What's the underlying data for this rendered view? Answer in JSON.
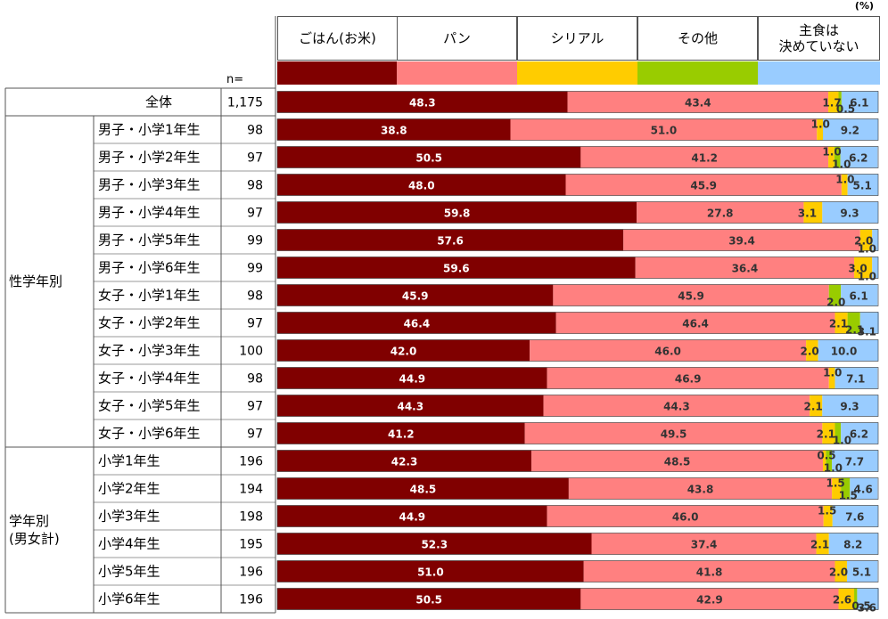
{
  "unit": "(%)",
  "n_header": "n=",
  "colors": [
    "#800000",
    "#ff8080",
    "#ffcc00",
    "#99cc00",
    "#99ccff"
  ],
  "chart_data": {
    "type": "bar",
    "orientation": "horizontal",
    "stacked": true,
    "xlim": [
      0,
      100
    ],
    "legend_position": "top",
    "series_names": [
      "ごはん(お米)",
      "パン",
      "シリアル",
      "その他",
      "主食は\n決めていない"
    ],
    "groups": [
      {
        "label": "",
        "rows": [
          0
        ]
      },
      {
        "label": "性学年別",
        "rows": [
          1,
          2,
          3,
          4,
          5,
          6,
          7,
          8,
          9,
          10,
          11,
          12
        ]
      },
      {
        "label": "学年別\n(男女計)",
        "rows": [
          13,
          14,
          15,
          16,
          17,
          18
        ]
      }
    ],
    "rows": [
      {
        "label": "全体",
        "n": "1,175",
        "values": [
          48.3,
          43.4,
          1.7,
          0.5,
          6.1
        ]
      },
      {
        "label": "男子・小学1年生",
        "n": "98",
        "values": [
          38.8,
          51.0,
          1.0,
          0,
          9.2
        ]
      },
      {
        "label": "男子・小学2年生",
        "n": "97",
        "values": [
          50.5,
          41.2,
          1.0,
          1.0,
          6.2
        ]
      },
      {
        "label": "男子・小学3年生",
        "n": "98",
        "values": [
          48.0,
          45.9,
          1.0,
          0,
          5.1
        ]
      },
      {
        "label": "男子・小学4年生",
        "n": "97",
        "values": [
          59.8,
          27.8,
          3.1,
          0,
          9.3
        ]
      },
      {
        "label": "男子・小学5年生",
        "n": "99",
        "values": [
          57.6,
          39.4,
          2.0,
          0,
          1.0
        ]
      },
      {
        "label": "男子・小学6年生",
        "n": "99",
        "values": [
          59.6,
          36.4,
          3.0,
          0,
          1.0
        ]
      },
      {
        "label": "女子・小学1年生",
        "n": "98",
        "values": [
          45.9,
          45.9,
          0,
          2.0,
          6.1
        ]
      },
      {
        "label": "女子・小学2年生",
        "n": "97",
        "values": [
          46.4,
          46.4,
          2.1,
          2.1,
          3.1
        ]
      },
      {
        "label": "女子・小学3年生",
        "n": "100",
        "values": [
          42.0,
          46.0,
          2.0,
          0,
          10.0
        ]
      },
      {
        "label": "女子・小学4年生",
        "n": "98",
        "values": [
          44.9,
          46.9,
          1.0,
          0,
          7.1
        ]
      },
      {
        "label": "女子・小学5年生",
        "n": "97",
        "values": [
          44.3,
          44.3,
          2.1,
          0,
          9.3
        ]
      },
      {
        "label": "女子・小学6年生",
        "n": "97",
        "values": [
          41.2,
          49.5,
          2.1,
          1.0,
          6.2
        ]
      },
      {
        "label": "小学1年生",
        "n": "196",
        "values": [
          42.3,
          48.5,
          0.5,
          1.0,
          7.7
        ]
      },
      {
        "label": "小学2年生",
        "n": "194",
        "values": [
          48.5,
          43.8,
          1.5,
          1.5,
          4.6
        ]
      },
      {
        "label": "小学3年生",
        "n": "198",
        "values": [
          44.9,
          46.0,
          1.5,
          0,
          7.6
        ]
      },
      {
        "label": "小学4年生",
        "n": "195",
        "values": [
          52.3,
          37.4,
          2.1,
          0,
          8.2
        ]
      },
      {
        "label": "小学5年生",
        "n": "196",
        "values": [
          51.0,
          41.8,
          2.0,
          0,
          5.1
        ]
      },
      {
        "label": "小学6年生",
        "n": "196",
        "values": [
          50.5,
          42.9,
          2.6,
          0.5,
          3.6
        ]
      }
    ]
  }
}
